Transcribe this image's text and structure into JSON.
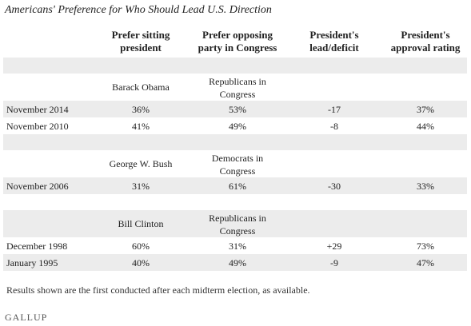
{
  "title": "Americans' Preference for Who Should Lead U.S. Direction",
  "columns": [
    [
      "Prefer sitting",
      "president"
    ],
    [
      "Prefer opposing",
      "party in Congress"
    ],
    [
      "President's",
      "lead/deficit"
    ],
    [
      "President's",
      "approval rating"
    ]
  ],
  "groups": [
    {
      "president": "Barack Obama",
      "opposition": [
        "Republicans in",
        "Congress"
      ],
      "rows": [
        [
          "November 2014",
          "36%",
          "53%",
          "-17",
          "37%"
        ],
        [
          "November 2010",
          "41%",
          "49%",
          "-8",
          "44%"
        ]
      ]
    },
    {
      "president": "George W. Bush",
      "opposition": [
        "Democrats in",
        "Congress"
      ],
      "rows": [
        [
          "November 2006",
          "31%",
          "61%",
          "-30",
          "33%"
        ]
      ]
    },
    {
      "president": "Bill Clinton",
      "opposition": [
        "Republicans in",
        "Congress"
      ],
      "rows": [
        [
          "December 1998",
          "60%",
          "31%",
          "+29",
          "73%"
        ],
        [
          "January 1995",
          "40%",
          "49%",
          "-9",
          "47%"
        ]
      ]
    }
  ],
  "footnote": "Results shown are the first conducted after each midterm election, as available.",
  "source": "GALLUP"
}
